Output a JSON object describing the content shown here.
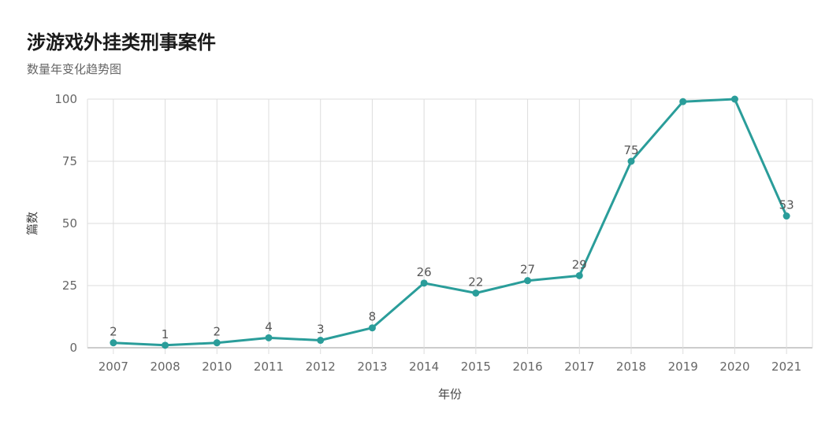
{
  "header": {
    "title": "涉游戏外挂类刑事案件",
    "subtitle": "数量年变化趋势图"
  },
  "colors": {
    "line": "#2a9d9a",
    "grid": "#dddddd",
    "axis": "#999999"
  },
  "chart_data": {
    "type": "line",
    "title": "涉游戏外挂类刑事案件",
    "subtitle": "数量年变化趋势图",
    "xlabel": "年份",
    "ylabel": "篇数",
    "categories": [
      "2007",
      "2008",
      "2010",
      "2011",
      "2012",
      "2013",
      "2014",
      "2015",
      "2016",
      "2017",
      "2018",
      "2019",
      "2020",
      "2021"
    ],
    "values": [
      2,
      1,
      2,
      4,
      3,
      8,
      26,
      22,
      27,
      29,
      75,
      99,
      100,
      53
    ],
    "data_labels": [
      "2",
      "1",
      "2",
      "4",
      "3",
      "8",
      "26",
      "22",
      "27",
      "29",
      "75",
      "",
      "",
      "53"
    ],
    "ylim": [
      0,
      100
    ],
    "yticks": [
      0,
      25,
      50,
      75,
      100
    ],
    "grid": true,
    "legend": "none"
  }
}
